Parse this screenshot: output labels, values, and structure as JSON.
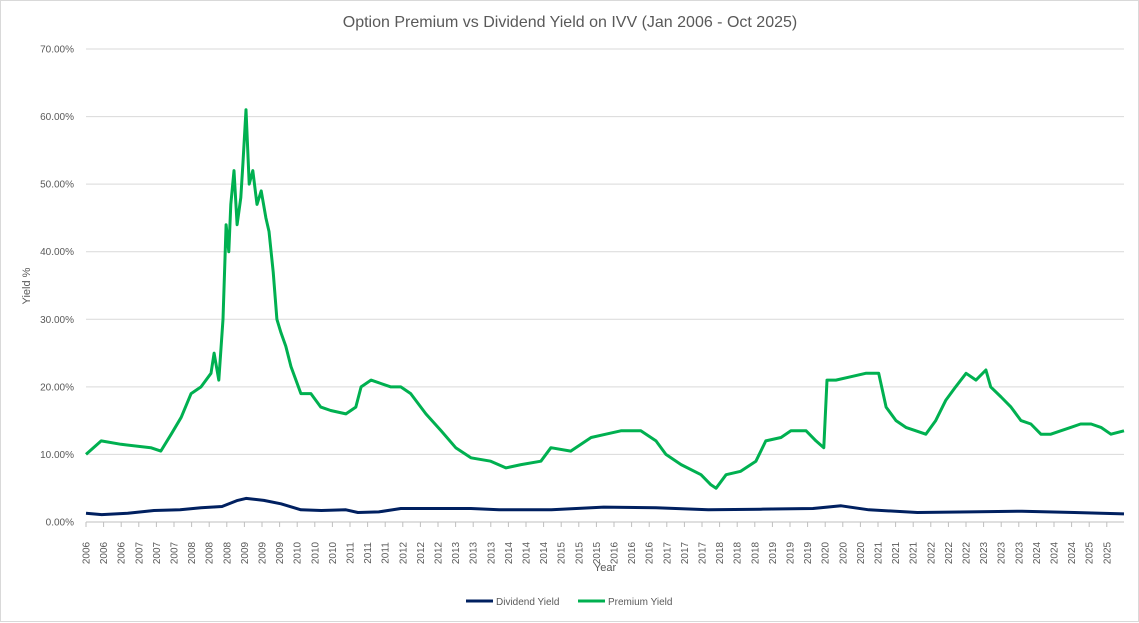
{
  "chart_data": {
    "type": "line",
    "title": "Option Premium vs Dividend Yield on IVV (Jan 2006 - Oct 2025)",
    "xlabel": "Year",
    "ylabel": "Yield %",
    "ylim": [
      0,
      70
    ],
    "xlim": [
      2006.0,
      2025.85
    ],
    "grid": true,
    "legend_position": "bottom",
    "y_ticks": [
      "0.00%",
      "10.00%",
      "20.00%",
      "30.00%",
      "40.00%",
      "50.00%",
      "60.00%",
      "70.00%"
    ],
    "x_tick_labels": [
      "2006",
      "2006",
      "2006",
      "2007",
      "2007",
      "2007",
      "2008",
      "2008",
      "2008",
      "2009",
      "2009",
      "2009",
      "2010",
      "2010",
      "2010",
      "2011",
      "2011",
      "2011",
      "2012",
      "2012",
      "2012",
      "2013",
      "2013",
      "2013",
      "2014",
      "2014",
      "2014",
      "2015",
      "2015",
      "2015",
      "2016",
      "2016",
      "2016",
      "2017",
      "2017",
      "2017",
      "2018",
      "2018",
      "2018",
      "2019",
      "2019",
      "2019",
      "2020",
      "2020",
      "2020",
      "2021",
      "2021",
      "2021",
      "2022",
      "2022",
      "2022",
      "2023",
      "2023",
      "2023",
      "2024",
      "2024",
      "2024",
      "2025",
      "2025"
    ],
    "series": [
      {
        "name": "Dividend Yield",
        "color": "#002060",
        "x": [
          2006.0,
          2006.3,
          2006.8,
          2007.3,
          2007.8,
          2008.2,
          2008.6,
          2008.9,
          2009.06,
          2009.4,
          2009.73,
          2010.11,
          2010.5,
          2010.97,
          2011.2,
          2011.6,
          2012.02,
          2012.6,
          2013.36,
          2013.9,
          2014.9,
          2015.9,
          2016.9,
          2017.9,
          2018.9,
          2019.9,
          2020.44,
          2020.97,
          2021.9,
          2022.9,
          2023.9,
          2024.9,
          2025.41,
          2025.85
        ],
        "values": [
          1.3,
          1.1,
          1.3,
          1.7,
          1.8,
          2.1,
          2.3,
          3.2,
          3.5,
          3.2,
          2.7,
          1.8,
          1.7,
          1.8,
          1.4,
          1.5,
          2.0,
          2.0,
          2.0,
          1.8,
          1.8,
          2.2,
          2.1,
          1.8,
          1.9,
          2.0,
          2.4,
          1.8,
          1.4,
          1.5,
          1.6,
          1.4,
          1.3,
          1.2
        ]
      },
      {
        "name": "Premium Yield",
        "color": "#00B050",
        "x": [
          2006.0,
          2006.29,
          2006.67,
          2007.24,
          2007.43,
          2007.63,
          2007.82,
          2008.01,
          2008.2,
          2008.39,
          2008.45,
          2008.54,
          2008.62,
          2008.68,
          2008.73,
          2008.77,
          2008.83,
          2008.89,
          2008.96,
          2009.0,
          2009.06,
          2009.12,
          2009.19,
          2009.27,
          2009.35,
          2009.44,
          2009.5,
          2009.58,
          2009.65,
          2009.73,
          2009.82,
          2009.92,
          2010.11,
          2010.3,
          2010.49,
          2010.68,
          2010.97,
          2011.16,
          2011.26,
          2011.45,
          2011.64,
          2011.83,
          2012.02,
          2012.21,
          2012.5,
          2012.79,
          2013.07,
          2013.36,
          2013.74,
          2014.03,
          2014.32,
          2014.7,
          2014.89,
          2015.27,
          2015.66,
          2015.94,
          2016.23,
          2016.61,
          2016.9,
          2017.09,
          2017.38,
          2017.76,
          2017.95,
          2018.05,
          2018.24,
          2018.52,
          2018.81,
          2019.0,
          2019.29,
          2019.48,
          2019.77,
          2019.96,
          2020.11,
          2020.17,
          2020.34,
          2020.63,
          2020.91,
          2021.16,
          2021.3,
          2021.49,
          2021.68,
          2021.87,
          2022.06,
          2022.25,
          2022.44,
          2022.63,
          2022.83,
          2023.02,
          2023.21,
          2023.3,
          2023.5,
          2023.69,
          2023.88,
          2024.07,
          2024.26,
          2024.45,
          2024.64,
          2024.83,
          2025.02,
          2025.22,
          2025.41,
          2025.6,
          2025.85
        ],
        "values": [
          10,
          12,
          11.5,
          11,
          10.5,
          13,
          15.5,
          19,
          20,
          22,
          25,
          21,
          30,
          44,
          40,
          47,
          52,
          44,
          48,
          53,
          61,
          50,
          52,
          47,
          49,
          45,
          43,
          37,
          30,
          28,
          26,
          23,
          19,
          19,
          17,
          16.5,
          16,
          17,
          20,
          21,
          20.5,
          20,
          20,
          19,
          16,
          13.5,
          11,
          9.5,
          9,
          8,
          8.5,
          9,
          11,
          10.5,
          12.5,
          13,
          13.5,
          13.5,
          12,
          10,
          8.5,
          7,
          5.5,
          5,
          7,
          7.5,
          9,
          12,
          12.5,
          13.5,
          13.5,
          12,
          11,
          21,
          21,
          21.5,
          22,
          22,
          17,
          15,
          14,
          13.5,
          13,
          15,
          18,
          20,
          22,
          21,
          22.5,
          20,
          18.5,
          17,
          15,
          14.5,
          13,
          13,
          13.5,
          14,
          14.5,
          14.5,
          14,
          13,
          13.5
        ]
      }
    ]
  }
}
